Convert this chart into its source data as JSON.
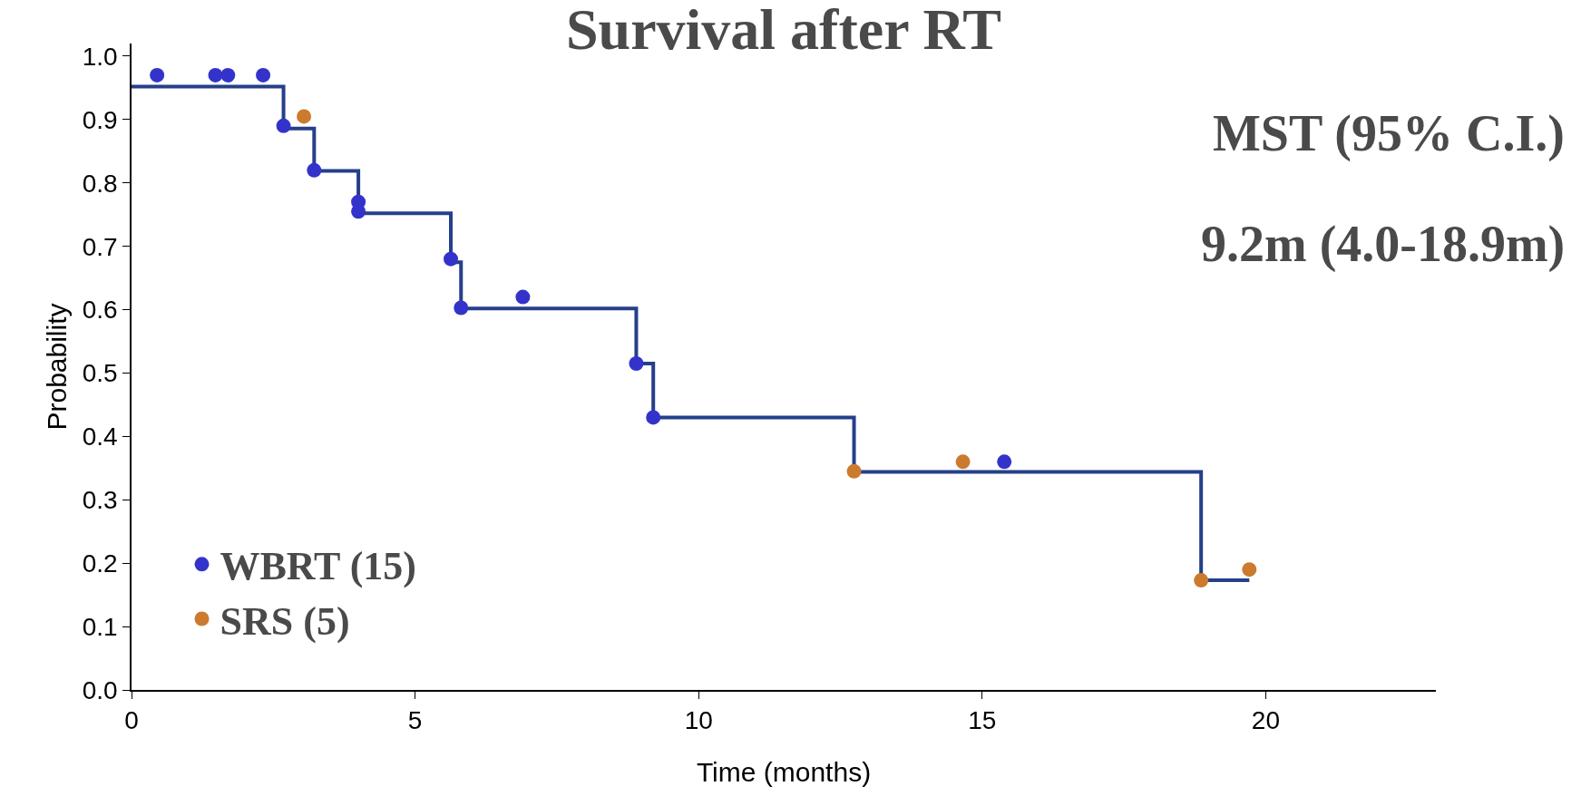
{
  "chart_data": {
    "type": "step",
    "title": "Survival after RT",
    "xlabel": "Time (months)",
    "ylabel": "Probability",
    "annotations": [
      "MST (95% C.I.)",
      "9.2m (4.0-18.9m)"
    ],
    "xlim": [
      0,
      23
    ],
    "xticks": [
      0,
      5,
      10,
      15,
      20
    ],
    "ylim": [
      0,
      1.02
    ],
    "yticks": [
      {
        "value": 0,
        "label": "0.0"
      },
      0.1,
      0.2,
      0.3,
      0.4,
      0.5,
      0.6,
      0.7,
      0.8,
      0.9,
      {
        "value": 1,
        "label": "1.0"
      }
    ],
    "grid": false,
    "legend": "bottom left",
    "series": [
      {
        "color": "#253f8a",
        "marker": "none",
        "line_style": "solid",
        "x": [
          0,
          2.68,
          3.22,
          4.0,
          5.63,
          5.81,
          8.9,
          9.2,
          12.74,
          18.86,
          19.71
        ],
        "values": [
          0.952,
          0.886,
          0.819,
          0.752,
          0.675,
          0.602,
          0.515,
          0.43,
          0.344,
          0.173,
          0.173
        ]
      },
      {
        "type": "scatter",
        "name": "WBRT (15)",
        "color": "#3333cc",
        "marker": "circle",
        "x": [
          0.45,
          1.48,
          1.7,
          2.32,
          2.68,
          3.22,
          4.0,
          4.0,
          5.63,
          5.81,
          6.9,
          8.9,
          9.2,
          15.39
        ],
        "values": [
          0.97,
          0.97,
          0.97,
          0.97,
          0.89,
          0.82,
          0.77,
          0.755,
          0.68,
          0.603,
          0.62,
          0.515,
          0.43,
          0.36
        ]
      },
      {
        "type": "scatter",
        "name": "SRS (5)",
        "color": "#cc7a2e",
        "marker": "circle",
        "x": [
          3.04,
          12.74,
          14.66,
          18.86,
          19.71
        ],
        "values": [
          0.905,
          0.345,
          0.36,
          0.173,
          0.19
        ]
      }
    ]
  }
}
